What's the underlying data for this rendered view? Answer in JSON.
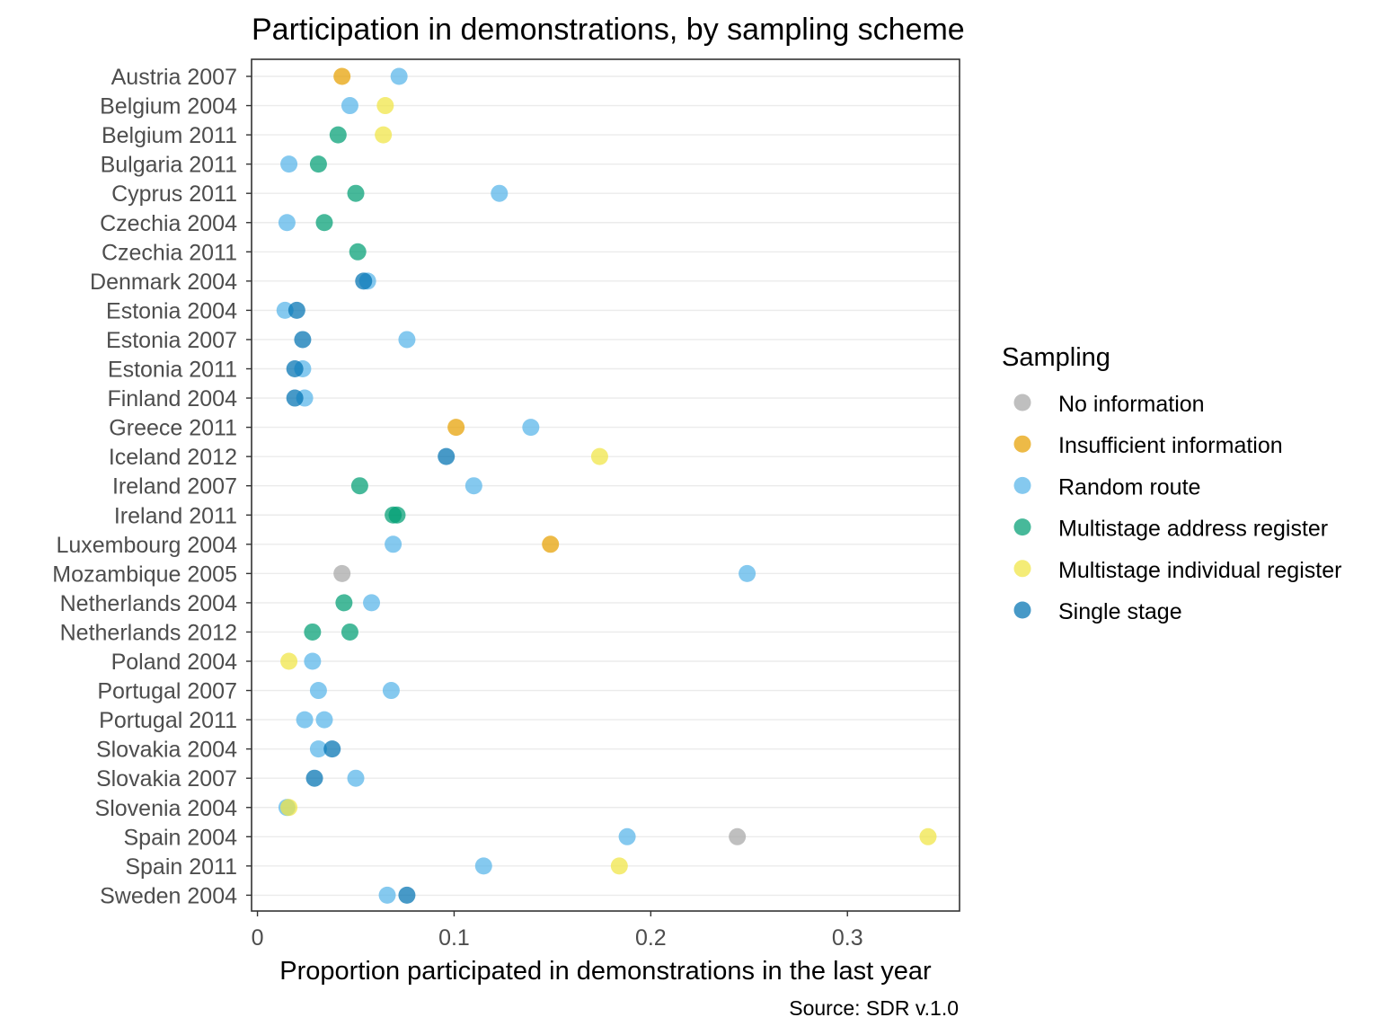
{
  "chart_data": {
    "type": "scatter",
    "title": "Participation in demonstrations, by sampling scheme",
    "xlabel": "Proportion participated in demonstrations in the last year",
    "ylabel": "",
    "caption": "Source: SDR v.1.0",
    "xlim": [
      -0.003,
      0.357
    ],
    "xticks": [
      0,
      0.1,
      0.2,
      0.3
    ],
    "xtick_labels": [
      "0",
      "0.1",
      "0.2",
      "0.3"
    ],
    "grid": "horizontal",
    "legend": {
      "title": "Sampling",
      "position": "right",
      "entries": [
        {
          "label": "No information",
          "color": "#a6a6a6"
        },
        {
          "label": "Insufficient information",
          "color": "#e69f00"
        },
        {
          "label": "Random route",
          "color": "#56b4e9"
        },
        {
          "label": "Multistage address register",
          "color": "#009e73"
        },
        {
          "label": "Multistage individual register",
          "color": "#f0e442"
        },
        {
          "label": "Single stage",
          "color": "#0072b2"
        }
      ]
    },
    "categories": [
      "Austria 2007",
      "Belgium 2004",
      "Belgium 2011",
      "Bulgaria 2011",
      "Cyprus 2011",
      "Czechia 2004",
      "Czechia 2011",
      "Denmark 2004",
      "Estonia 2004",
      "Estonia 2007",
      "Estonia 2011",
      "Finland 2004",
      "Greece 2011",
      "Iceland 2012",
      "Ireland 2007",
      "Ireland 2011",
      "Luxembourg 2004",
      "Mozambique 2005",
      "Netherlands 2004",
      "Netherlands 2012",
      "Poland 2004",
      "Portugal 2007",
      "Portugal 2011",
      "Slovakia 2004",
      "Slovakia 2007",
      "Slovenia 2004",
      "Spain 2004",
      "Spain 2011",
      "Sweden 2004"
    ],
    "series": [
      {
        "name": "No information",
        "color": "#a6a6a6",
        "points": [
          {
            "category": "Mozambique 2005",
            "x": 0.043
          },
          {
            "category": "Spain 2004",
            "x": 0.244
          }
        ]
      },
      {
        "name": "Insufficient information",
        "color": "#e69f00",
        "points": [
          {
            "category": "Austria 2007",
            "x": 0.043
          },
          {
            "category": "Greece 2011",
            "x": 0.101
          },
          {
            "category": "Luxembourg 2004",
            "x": 0.149
          }
        ]
      },
      {
        "name": "Random route",
        "color": "#56b4e9",
        "points": [
          {
            "category": "Austria 2007",
            "x": 0.072
          },
          {
            "category": "Belgium 2004",
            "x": 0.047
          },
          {
            "category": "Bulgaria 2011",
            "x": 0.016
          },
          {
            "category": "Cyprus 2011",
            "x": 0.123
          },
          {
            "category": "Czechia 2004",
            "x": 0.015
          },
          {
            "category": "Denmark 2004",
            "x": 0.056
          },
          {
            "category": "Estonia 2004",
            "x": 0.014
          },
          {
            "category": "Estonia 2007",
            "x": 0.076
          },
          {
            "category": "Estonia 2011",
            "x": 0.023
          },
          {
            "category": "Finland 2004",
            "x": 0.024
          },
          {
            "category": "Greece 2011",
            "x": 0.139
          },
          {
            "category": "Ireland 2007",
            "x": 0.11
          },
          {
            "category": "Luxembourg 2004",
            "x": 0.069
          },
          {
            "category": "Mozambique 2005",
            "x": 0.249
          },
          {
            "category": "Netherlands 2004",
            "x": 0.058
          },
          {
            "category": "Poland 2004",
            "x": 0.028
          },
          {
            "category": "Portugal 2007",
            "x": 0.031
          },
          {
            "category": "Portugal 2007",
            "x": 0.068
          },
          {
            "category": "Portugal 2011",
            "x": 0.024
          },
          {
            "category": "Portugal 2011",
            "x": 0.034
          },
          {
            "category": "Slovakia 2004",
            "x": 0.031
          },
          {
            "category": "Slovakia 2007",
            "x": 0.05
          },
          {
            "category": "Slovenia 2004",
            "x": 0.015
          },
          {
            "category": "Spain 2004",
            "x": 0.188
          },
          {
            "category": "Spain 2011",
            "x": 0.115
          },
          {
            "category": "Sweden 2004",
            "x": 0.066
          }
        ]
      },
      {
        "name": "Multistage address register",
        "color": "#009e73",
        "points": [
          {
            "category": "Belgium 2011",
            "x": 0.041
          },
          {
            "category": "Bulgaria 2011",
            "x": 0.031
          },
          {
            "category": "Cyprus 2011",
            "x": 0.05
          },
          {
            "category": "Czechia 2004",
            "x": 0.034
          },
          {
            "category": "Czechia 2011",
            "x": 0.051
          },
          {
            "category": "Ireland 2007",
            "x": 0.052
          },
          {
            "category": "Ireland 2011",
            "x": 0.069
          },
          {
            "category": "Ireland 2011",
            "x": 0.071
          },
          {
            "category": "Netherlands 2004",
            "x": 0.044
          },
          {
            "category": "Netherlands 2012",
            "x": 0.028
          },
          {
            "category": "Netherlands 2012",
            "x": 0.047
          }
        ]
      },
      {
        "name": "Multistage individual register",
        "color": "#f0e442",
        "points": [
          {
            "category": "Belgium 2004",
            "x": 0.065
          },
          {
            "category": "Belgium 2011",
            "x": 0.064
          },
          {
            "category": "Iceland 2012",
            "x": 0.174
          },
          {
            "category": "Poland 2004",
            "x": 0.016
          },
          {
            "category": "Slovenia 2004",
            "x": 0.016
          },
          {
            "category": "Spain 2004",
            "x": 0.341
          },
          {
            "category": "Spain 2011",
            "x": 0.184
          }
        ]
      },
      {
        "name": "Single stage",
        "color": "#0072b2",
        "points": [
          {
            "category": "Denmark 2004",
            "x": 0.054
          },
          {
            "category": "Estonia 2004",
            "x": 0.02
          },
          {
            "category": "Estonia 2007",
            "x": 0.023
          },
          {
            "category": "Estonia 2011",
            "x": 0.019
          },
          {
            "category": "Finland 2004",
            "x": 0.019
          },
          {
            "category": "Iceland 2012",
            "x": 0.096
          },
          {
            "category": "Slovakia 2004",
            "x": 0.038
          },
          {
            "category": "Slovakia 2007",
            "x": 0.029
          },
          {
            "category": "Sweden 2004",
            "x": 0.076
          }
        ]
      }
    ]
  }
}
